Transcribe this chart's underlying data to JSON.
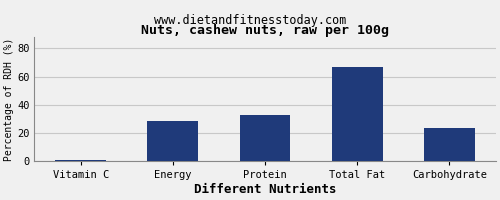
{
  "title": "Nuts, cashew nuts, raw per 100g",
  "subtitle": "www.dietandfitnesstoday.com",
  "xlabel": "Different Nutrients",
  "ylabel": "Percentage of RDH (%)",
  "categories": [
    "Vitamin C",
    "Energy",
    "Protein",
    "Total Fat",
    "Carbohydrate"
  ],
  "values": [
    1.0,
    28.5,
    33.0,
    67.0,
    23.5
  ],
  "bar_color": "#1f3a7a",
  "ylim": [
    0,
    88
  ],
  "yticks": [
    0,
    20,
    40,
    60,
    80
  ],
  "background_color": "#f0f0f0",
  "plot_bg_color": "#f0f0f0",
  "grid_color": "#c8c8c8",
  "title_fontsize": 9.5,
  "subtitle_fontsize": 8.5,
  "xlabel_fontsize": 9,
  "ylabel_fontsize": 7,
  "tick_fontsize": 7.5,
  "bar_width": 0.55
}
